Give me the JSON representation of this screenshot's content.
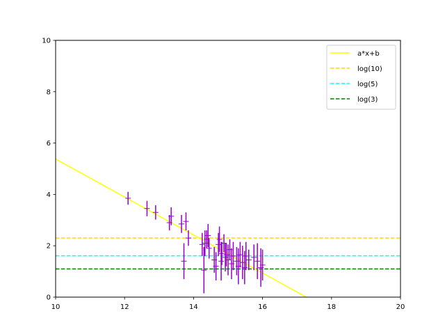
{
  "chart_data": {
    "type": "scatter",
    "xlim": [
      10,
      20
    ],
    "ylim": [
      0,
      10
    ],
    "xticks": [
      10,
      12,
      14,
      16,
      18,
      20
    ],
    "yticks": [
      0,
      2,
      4,
      6,
      8,
      10
    ],
    "grid": false,
    "legend_position": "top-right",
    "fit_line": {
      "name": "a*x+b",
      "color": "#ffff00",
      "slope": -0.74,
      "intercept": 12.78
    },
    "hlines": [
      {
        "name": "log(10)",
        "y": 2.303,
        "color": "#ffd700",
        "style": "dashed"
      },
      {
        "name": "log(5)",
        "y": 1.609,
        "color": "#00ffff",
        "style": "dashed"
      },
      {
        "name": "log(3)",
        "y": 1.099,
        "color": "#008000",
        "style": "dashed"
      }
    ],
    "points_color": "#9400d3",
    "points": [
      {
        "x": 12.1,
        "y": 3.85,
        "err": 0.25
      },
      {
        "x": 12.65,
        "y": 3.45,
        "err": 0.3
      },
      {
        "x": 12.9,
        "y": 3.3,
        "err": 0.28
      },
      {
        "x": 13.3,
        "y": 2.9,
        "err": 0.3
      },
      {
        "x": 13.35,
        "y": 3.15,
        "err": 0.35
      },
      {
        "x": 13.65,
        "y": 2.85,
        "err": 0.35
      },
      {
        "x": 13.72,
        "y": 1.4,
        "err": 0.7
      },
      {
        "x": 13.78,
        "y": 2.95,
        "err": 0.35
      },
      {
        "x": 13.85,
        "y": 2.3,
        "err": 0.3
      },
      {
        "x": 14.25,
        "y": 2.05,
        "err": 0.45
      },
      {
        "x": 14.3,
        "y": 1.05,
        "err": 0.9
      },
      {
        "x": 14.33,
        "y": 2.1,
        "err": 0.5
      },
      {
        "x": 14.38,
        "y": 2.25,
        "err": 0.35
      },
      {
        "x": 14.42,
        "y": 2.4,
        "err": 0.45
      },
      {
        "x": 14.45,
        "y": 1.9,
        "err": 0.4
      },
      {
        "x": 14.6,
        "y": 1.45,
        "err": 0.5
      },
      {
        "x": 14.65,
        "y": 1.2,
        "err": 0.55
      },
      {
        "x": 14.72,
        "y": 2.05,
        "err": 0.45
      },
      {
        "x": 14.75,
        "y": 2.25,
        "err": 0.5
      },
      {
        "x": 14.8,
        "y": 1.4,
        "err": 0.75
      },
      {
        "x": 14.82,
        "y": 1.7,
        "err": 0.45
      },
      {
        "x": 14.88,
        "y": 2.1,
        "err": 0.35
      },
      {
        "x": 14.92,
        "y": 1.55,
        "err": 0.55
      },
      {
        "x": 14.95,
        "y": 1.65,
        "err": 0.45
      },
      {
        "x": 15.0,
        "y": 1.45,
        "err": 0.6
      },
      {
        "x": 15.05,
        "y": 1.85,
        "err": 0.4
      },
      {
        "x": 15.1,
        "y": 1.3,
        "err": 0.6
      },
      {
        "x": 15.15,
        "y": 1.6,
        "err": 0.55
      },
      {
        "x": 15.25,
        "y": 1.4,
        "err": 0.55
      },
      {
        "x": 15.3,
        "y": 1.2,
        "err": 0.7
      },
      {
        "x": 15.35,
        "y": 1.65,
        "err": 0.5
      },
      {
        "x": 15.42,
        "y": 1.35,
        "err": 0.65
      },
      {
        "x": 15.48,
        "y": 1.15,
        "err": 0.65
      },
      {
        "x": 15.52,
        "y": 1.6,
        "err": 0.55
      },
      {
        "x": 15.6,
        "y": 1.45,
        "err": 0.4
      },
      {
        "x": 15.75,
        "y": 1.55,
        "err": 0.5
      },
      {
        "x": 15.85,
        "y": 1.4,
        "err": 0.7
      },
      {
        "x": 15.95,
        "y": 1.15,
        "err": 0.75
      },
      {
        "x": 16.0,
        "y": 1.25,
        "err": 0.6
      }
    ]
  }
}
